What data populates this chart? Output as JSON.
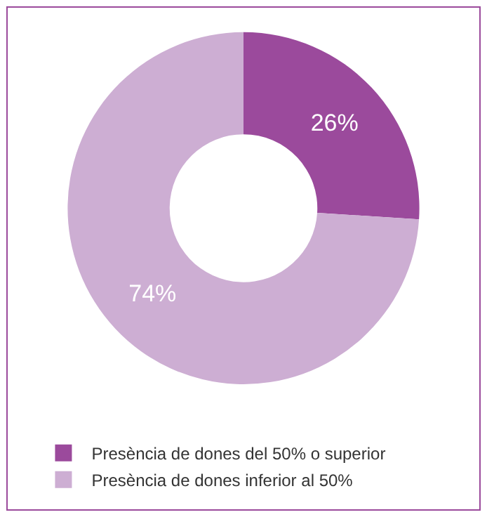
{
  "chart_data": {
    "type": "donut",
    "categories": [
      "Presència de dones del 50% o superior",
      "Presència de dones inferior al 50%"
    ],
    "values": [
      26,
      74
    ],
    "colors": [
      "#9b4a9c",
      "#cdaed3"
    ],
    "value_labels": [
      "26%",
      "74%"
    ],
    "legend": "bottom left"
  }
}
